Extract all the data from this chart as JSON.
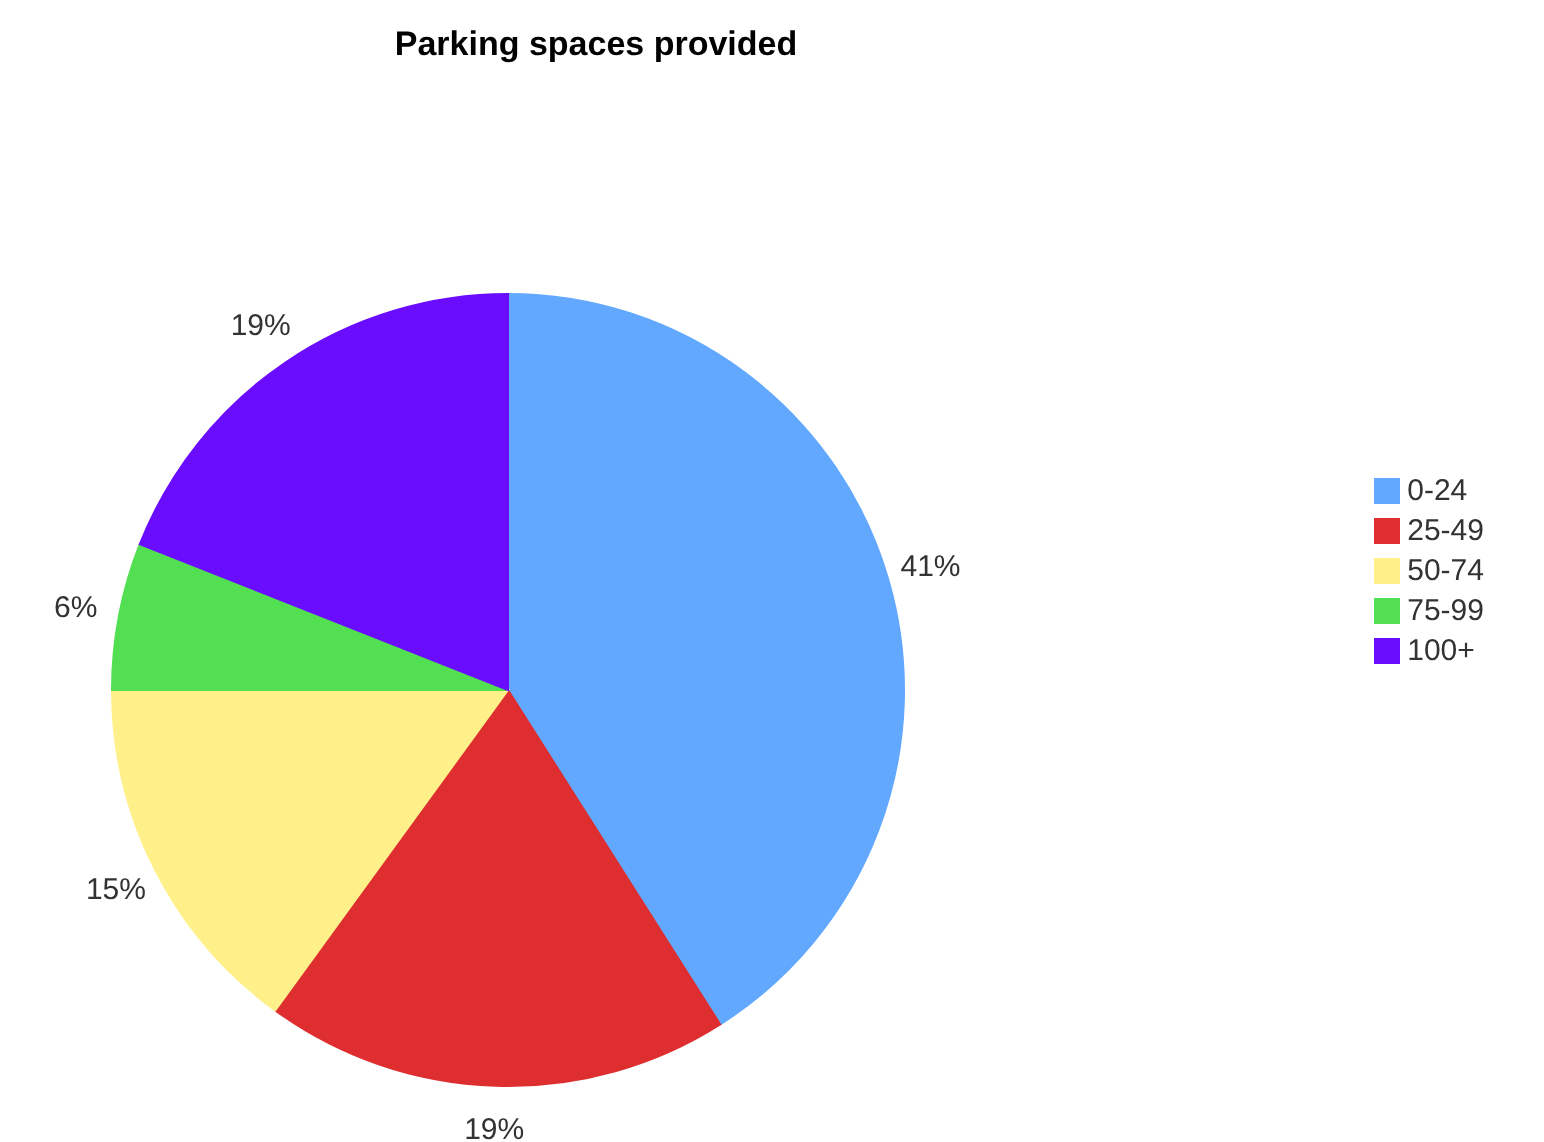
{
  "chart_data": {
    "type": "pie",
    "title": "Parking spaces provided",
    "categories": [
      "0-24",
      "25-49",
      "50-74",
      "75-99",
      "100+"
    ],
    "values": [
      41,
      19,
      15,
      6,
      19
    ],
    "value_labels": [
      "41%",
      "19%",
      "15%",
      "6%",
      "19%"
    ],
    "colors": [
      "#62a8ff",
      "#de2e30",
      "#fff08a",
      "#52e052",
      "#6a0dff"
    ],
    "legend": "right"
  }
}
